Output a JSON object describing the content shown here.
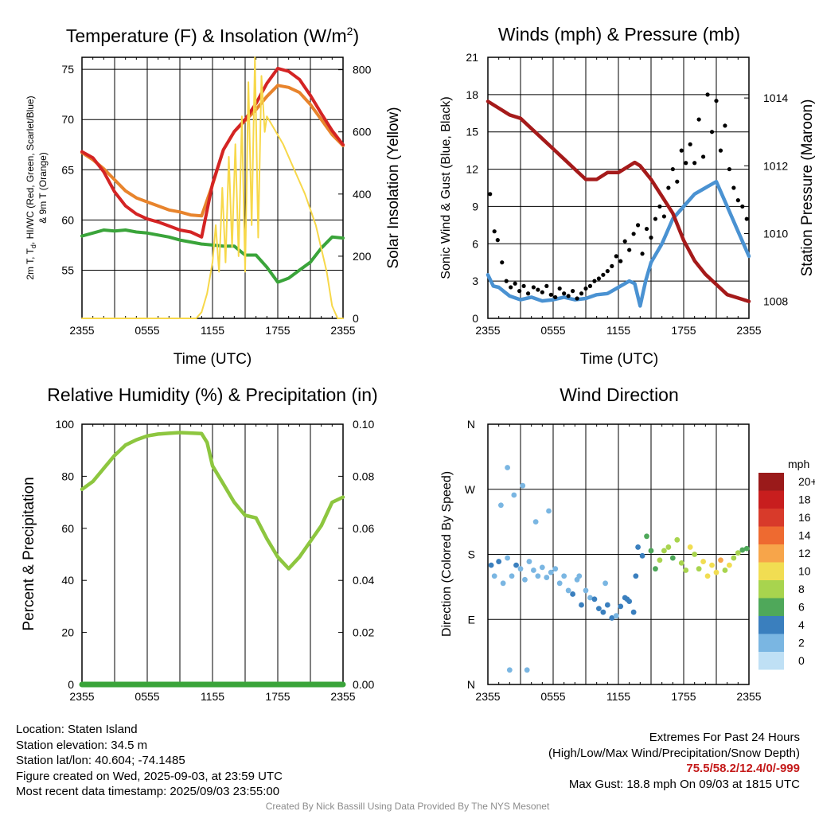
{
  "chart_data": [
    {
      "type": "line",
      "title_main": "Temperature (F) & Insolation (W/m",
      "title_sup": "2",
      "title_end": ")",
      "xlabel": "Time (UTC)",
      "ylabel_left_line1": "2m T, T",
      "ylabel_left_sub": "d",
      "ylabel_left_line1_end": ", HI/WC (Red, Green, Scarlet/Blue)",
      "ylabel_left_line2": "& 9m T (Orange)",
      "ylabel_right": "Solar Insolation (Yellow)",
      "x_ticks": [
        "2355",
        "0555",
        "1155",
        "1755",
        "2355"
      ],
      "x_range_hours": [
        0,
        24
      ],
      "ylim_left": [
        50.2,
        76.2
      ],
      "yticks_left": [
        "55",
        "60",
        "65",
        "70",
        "75"
      ],
      "ylim_right": [
        0,
        840
      ],
      "yticks_right": [
        "0",
        "200",
        "400",
        "600",
        "800"
      ],
      "series": [
        {
          "color": "#e8842c",
          "axis": "left",
          "x": [
            0,
            1,
            2,
            3,
            4,
            5,
            6,
            7,
            8,
            9,
            10,
            11,
            12,
            13,
            14,
            15,
            16,
            17,
            18,
            19,
            20,
            21,
            22,
            23,
            24
          ],
          "y": [
            66.7,
            66.0,
            65.1,
            64.0,
            62.9,
            62.2,
            61.8,
            61.4,
            61.0,
            60.8,
            60.5,
            60.4,
            63.5,
            67.0,
            68.8,
            69.9,
            71.0,
            72.3,
            73.4,
            73.2,
            72.7,
            71.5,
            70.0,
            68.5,
            67.4
          ]
        },
        {
          "color": "#d42424",
          "axis": "left",
          "x": [
            0,
            1,
            2,
            3,
            4,
            5,
            6,
            7,
            8,
            9,
            10,
            11,
            12,
            13,
            14,
            15,
            16,
            17,
            18,
            19,
            20,
            21,
            22,
            23,
            24
          ],
          "y": [
            66.8,
            66.2,
            64.8,
            62.8,
            61.4,
            60.6,
            60.1,
            59.8,
            59.4,
            59.0,
            58.8,
            58.3,
            63.6,
            67.0,
            68.8,
            70.0,
            71.6,
            73.6,
            75.1,
            74.8,
            74.0,
            72.4,
            70.6,
            68.9,
            67.5
          ]
        },
        {
          "color": "#3aa43a",
          "axis": "left",
          "x": [
            0,
            1,
            2,
            3,
            4,
            5,
            6,
            7,
            8,
            9,
            10,
            11,
            12,
            13,
            14,
            15,
            16,
            17,
            18,
            19,
            20,
            21,
            22,
            23,
            24
          ],
          "y": [
            58.4,
            58.7,
            59.0,
            58.9,
            59.0,
            58.8,
            58.7,
            58.5,
            58.3,
            58.0,
            57.8,
            57.6,
            57.5,
            57.4,
            57.4,
            56.5,
            56.5,
            55.3,
            53.8,
            54.2,
            55.0,
            55.8,
            57.2,
            58.3,
            58.2
          ]
        },
        {
          "color": "#f7d84a",
          "axis": "right",
          "x": [
            0,
            10.5,
            11,
            11.5,
            12,
            12.3,
            12.6,
            12.9,
            13.2,
            13.5,
            13.8,
            14.1,
            14.4,
            14.7,
            15.0,
            15.3,
            15.6,
            15.9,
            16.2,
            16.5,
            16.8,
            17.0,
            17.5,
            18.5,
            19.5,
            20.5,
            21.5,
            22.5,
            23.0,
            23.5,
            24
          ],
          "y": [
            0,
            0,
            20,
            80,
            180,
            300,
            150,
            420,
            180,
            520,
            230,
            560,
            200,
            650,
            150,
            760,
            300,
            840,
            260,
            780,
            600,
            650,
            620,
            560,
            480,
            400,
            300,
            150,
            40,
            0,
            0
          ]
        }
      ]
    },
    {
      "type": "scatter",
      "title": "Winds (mph) & Pressure (mb)",
      "xlabel": "Time (UTC)",
      "ylabel_left": "Sonic Wind & Gust (Blue, Black)",
      "ylabel_right": "Station Pressure (Maroon)",
      "x_ticks": [
        "2355",
        "0555",
        "1155",
        "1755",
        "2355"
      ],
      "x_range_hours": [
        0,
        24
      ],
      "ylim_left": [
        0,
        21
      ],
      "yticks_left": [
        "0",
        "3",
        "6",
        "9",
        "12",
        "15",
        "18",
        "21"
      ],
      "ylim_right": [
        1007.5,
        1015.2
      ],
      "yticks_right": [
        "1008",
        "1010",
        "1012",
        "1014"
      ],
      "series": [
        {
          "color": "#4a92d2",
          "axis": "left",
          "style": "line",
          "x": [
            0,
            0.5,
            1,
            2,
            3,
            4,
            5,
            6,
            7,
            8,
            9,
            10,
            11,
            12,
            13,
            13.5,
            14,
            14.5,
            15,
            16,
            17,
            18,
            19,
            20,
            21,
            22,
            23,
            24
          ],
          "y": [
            3.5,
            2.6,
            2.5,
            1.8,
            1.5,
            1.7,
            1.4,
            1.5,
            1.7,
            1.5,
            1.6,
            1.9,
            2.0,
            2.5,
            3.0,
            2.8,
            1.0,
            3.0,
            4.5,
            6.0,
            8.0,
            9.0,
            10.0,
            10.5,
            11.0,
            9.0,
            7.0,
            5.0
          ]
        },
        {
          "color": "#000000",
          "axis": "left",
          "style": "points",
          "x": [
            0.2,
            0.6,
            0.9,
            1.3,
            1.7,
            2.1,
            2.5,
            2.9,
            3.3,
            3.7,
            4.2,
            4.6,
            5.0,
            5.4,
            5.8,
            6.2,
            6.6,
            7.0,
            7.4,
            7.8,
            8.2,
            8.6,
            9.0,
            9.4,
            9.8,
            10.2,
            10.6,
            11.0,
            11.4,
            11.8,
            12.2,
            12.6,
            13.0,
            13.4,
            13.8,
            14.2,
            14.6,
            15.0,
            15.4,
            15.8,
            16.2,
            16.6,
            17.0,
            17.4,
            17.8,
            18.2,
            18.6,
            19.0,
            19.4,
            19.8,
            20.2,
            20.6,
            21.0,
            21.4,
            21.8,
            22.2,
            22.6,
            23.0,
            23.4,
            23.8
          ],
          "y": [
            10.0,
            7.0,
            6.3,
            4.5,
            3.0,
            2.5,
            2.8,
            2.2,
            2.6,
            2.0,
            2.5,
            2.3,
            2.1,
            2.6,
            1.9,
            1.7,
            2.4,
            2.0,
            1.8,
            2.2,
            1.6,
            2.0,
            2.4,
            2.6,
            3.0,
            3.2,
            3.5,
            3.8,
            4.2,
            5.0,
            4.6,
            6.2,
            5.5,
            6.8,
            7.5,
            5.2,
            7.2,
            6.5,
            8.0,
            9.0,
            8.2,
            10.5,
            12.0,
            11.0,
            13.5,
            12.5,
            14.0,
            12.5,
            16.0,
            13.0,
            18.0,
            15.0,
            17.5,
            13.5,
            15.5,
            12.0,
            10.5,
            9.5,
            9.0,
            8.0
          ]
        },
        {
          "color": "#a51a1a",
          "axis": "right",
          "style": "line",
          "x": [
            0,
            1,
            2,
            3,
            4,
            5,
            6,
            7,
            8,
            9,
            10,
            11,
            12,
            13,
            13.5,
            14,
            15,
            16,
            17,
            18,
            19,
            20,
            21,
            22,
            23,
            24
          ],
          "y": [
            1013.9,
            1013.7,
            1013.5,
            1013.4,
            1013.1,
            1012.8,
            1012.5,
            1012.2,
            1011.9,
            1011.6,
            1011.6,
            1011.8,
            1011.8,
            1012.0,
            1012.1,
            1012.0,
            1011.6,
            1011.1,
            1010.6,
            1009.8,
            1009.2,
            1008.8,
            1008.5,
            1008.2,
            1008.1,
            1008.0
          ]
        }
      ]
    },
    {
      "type": "line",
      "title": "Relative Humidity (%) & Precipitation (in)",
      "ylabel_left": "Percent & Precipitation",
      "x_ticks": [
        "2355",
        "0555",
        "1155",
        "1755",
        "2355"
      ],
      "x_range_hours": [
        0,
        24
      ],
      "ylim_left": [
        0,
        100
      ],
      "yticks_left": [
        "0",
        "20",
        "40",
        "60",
        "80",
        "100"
      ],
      "ylim_right": [
        0,
        0.1
      ],
      "yticks_right": [
        "0.00",
        "0.02",
        "0.04",
        "0.06",
        "0.08",
        "0.10"
      ],
      "series": [
        {
          "color": "#8dc63f",
          "axis": "left",
          "x": [
            0,
            1,
            2,
            3,
            4,
            5,
            6,
            7,
            8,
            9,
            10,
            11,
            11.5,
            12,
            13,
            14,
            15,
            16,
            17,
            18,
            19,
            20,
            21,
            22,
            23,
            24
          ],
          "y": [
            75,
            78,
            83,
            88,
            92,
            94,
            95.5,
            96.2,
            96.5,
            96.8,
            96.6,
            96.4,
            93,
            84,
            77,
            70,
            65,
            64,
            56,
            49,
            44.5,
            49,
            55,
            61,
            70,
            72
          ]
        },
        {
          "color": "#3aa43a",
          "axis": "right",
          "x": [
            0,
            24
          ],
          "y": [
            0,
            0
          ]
        }
      ]
    },
    {
      "type": "scatter",
      "title": "Wind Direction",
      "ylabel": "Direction (Colored By Speed)",
      "x_ticks": [
        "2355",
        "0555",
        "1155",
        "1755",
        "2355"
      ],
      "x_range_hours": [
        0,
        24
      ],
      "y_ticks": [
        "N",
        "E",
        "S",
        "W",
        "N"
      ],
      "ylim_deg": [
        0,
        360
      ],
      "legend_title": "mph",
      "legend_labels": [
        "20+",
        "18",
        "16",
        "14",
        "12",
        "10",
        "8",
        "6",
        "4",
        "2",
        "0"
      ],
      "legend_colors": [
        "#9a1a1a",
        "#c81e1e",
        "#d83a2a",
        "#ee6a30",
        "#f7a54a",
        "#f1dd52",
        "#a8d44e",
        "#4fa85a",
        "#3a7fbe",
        "#7ab6e2",
        "#bfe0f5"
      ],
      "points": {
        "x": [
          0.3,
          0.6,
          1.0,
          1.4,
          1.8,
          2.2,
          2.6,
          3.0,
          3.4,
          3.8,
          4.2,
          4.6,
          5.0,
          5.4,
          5.8,
          6.2,
          6.6,
          7.0,
          7.4,
          7.8,
          8.2,
          8.6,
          9.0,
          9.4,
          9.8,
          10.2,
          10.6,
          11.0,
          11.4,
          11.8,
          12.2,
          12.6,
          13.0,
          13.4,
          13.8,
          14.2,
          14.6,
          15.0,
          15.4,
          15.8,
          16.2,
          16.6,
          17.0,
          17.4,
          17.8,
          18.2,
          18.6,
          19.0,
          19.4,
          19.8,
          20.2,
          20.6,
          21.0,
          21.4,
          21.8,
          22.2,
          22.6,
          23.0,
          23.4,
          23.8,
          1.8,
          2.4,
          3.2,
          4.4,
          5.6,
          8.4,
          10.8,
          12.8,
          13.6,
          1.2,
          2.0,
          3.6
        ],
        "y": [
          165,
          150,
          170,
          140,
          175,
          150,
          165,
          160,
          145,
          170,
          158,
          150,
          162,
          148,
          155,
          160,
          140,
          150,
          130,
          125,
          145,
          110,
          130,
          120,
          118,
          105,
          100,
          110,
          92,
          95,
          108,
          120,
          115,
          100,
          190,
          178,
          205,
          185,
          160,
          172,
          185,
          190,
          175,
          200,
          168,
          158,
          190,
          180,
          160,
          170,
          150,
          165,
          155,
          172,
          158,
          165,
          175,
          182,
          186,
          188,
          300,
          262,
          275,
          225,
          240,
          150,
          140,
          118,
          150,
          248,
          20,
          20
        ],
        "speed": [
          3,
          2,
          3,
          2,
          1,
          2,
          3,
          2,
          1,
          2,
          2,
          1,
          2,
          1,
          2,
          1,
          2,
          2,
          1,
          3,
          2,
          3,
          2,
          2,
          3,
          3,
          3,
          4,
          3,
          2,
          3,
          4,
          4,
          3,
          4,
          4,
          5,
          6,
          5,
          7,
          8,
          7,
          6,
          8,
          7,
          8,
          9,
          7,
          8,
          9,
          10,
          9,
          10,
          11,
          8,
          9,
          7,
          8,
          6,
          5,
          1,
          1,
          1,
          1,
          1,
          2,
          2,
          3,
          3,
          2,
          1,
          1
        ]
      }
    }
  ],
  "footer": {
    "location": "Location: Staten Island",
    "elevation": "Station elevation: 34.5 m",
    "latlon": "Station lat/lon: 40.604; -74.1485",
    "created": "Figure created on Wed, 2025-09-03, at 23:59 UTC",
    "recent": "Most recent data timestamp: 2025/09/03 23:55:00",
    "extremes_title": "Extremes For Past 24 Hours",
    "extremes_desc": "(High/Low/Max Wind/Precipitation/Snow Depth)",
    "extremes_values": "75.5/58.2/12.4/0/-999",
    "max_gust": "Max Gust: 18.8 mph On 09/03 at 1815 UTC",
    "credit": "Created By Nick Bassill Using Data Provided By The NYS Mesonet"
  }
}
